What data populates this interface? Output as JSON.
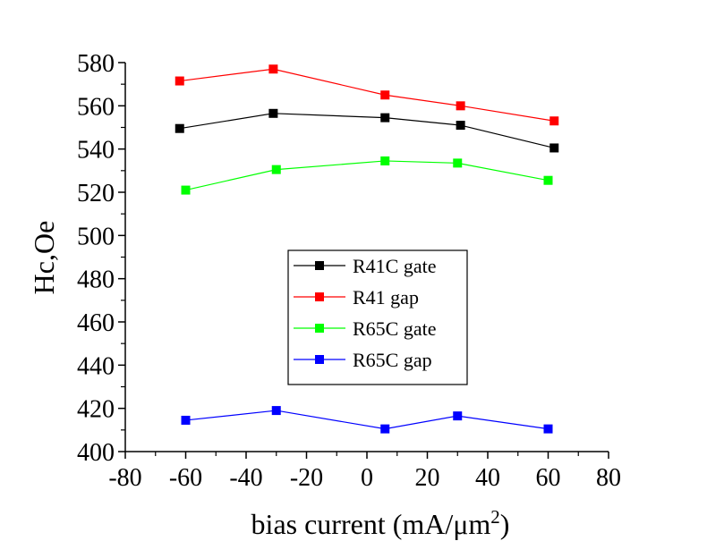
{
  "chart_data": {
    "type": "line",
    "xlabel_main": "bias current (mA/μm",
    "xlabel_sup": "2",
    "xlabel_close": ")",
    "ylabel": "Hc,Oe",
    "xlim": [
      -80,
      80
    ],
    "ylim": [
      400,
      580
    ],
    "xticks": [
      "-80",
      "-60",
      "-40",
      "-20",
      "0",
      "20",
      "40",
      "60",
      "80"
    ],
    "yticks": [
      "400",
      "420",
      "440",
      "460",
      "480",
      "500",
      "520",
      "540",
      "560",
      "580"
    ],
    "grid": false,
    "legend_position": "center",
    "series": [
      {
        "name": "R41C gate",
        "color": "#000000",
        "x": [
          -62,
          -31,
          6,
          31,
          62
        ],
        "y": [
          549.5,
          556.5,
          554.5,
          551,
          540.5
        ]
      },
      {
        "name": "R41 gap",
        "color": "#ff0000",
        "x": [
          -62,
          -31,
          6,
          31,
          62
        ],
        "y": [
          571.5,
          577,
          565,
          560,
          553
        ]
      },
      {
        "name": "R65C gate",
        "color": "#00ff00",
        "x": [
          -60,
          -30,
          6,
          30,
          60
        ],
        "y": [
          521,
          530.5,
          534.5,
          533.5,
          525.5
        ]
      },
      {
        "name": "R65C gap",
        "color": "#0000ff",
        "x": [
          -60,
          -30,
          6,
          30,
          60
        ],
        "y": [
          414.5,
          419,
          410.5,
          416.5,
          410.5
        ]
      }
    ]
  }
}
